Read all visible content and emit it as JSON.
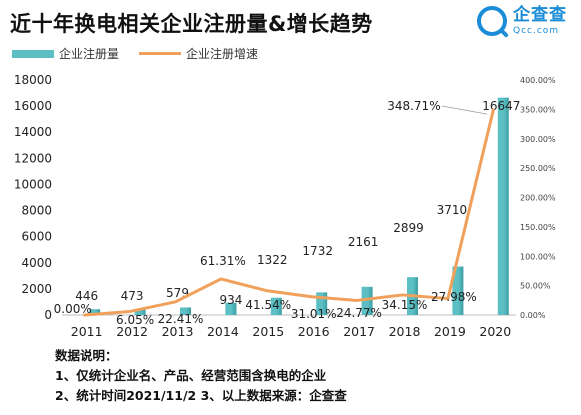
{
  "title": "近十年换电相关企业注册量&增长趋势",
  "logo": {
    "cn": "企查查",
    "en": "Qcc.com"
  },
  "legend": {
    "bar": "企业注册量",
    "line": "企业注册增速"
  },
  "colors": {
    "bar": "#5cbfc3",
    "bar_dark": "#3a9ea3",
    "line": "#f0a05a"
  },
  "notes": {
    "heading": "数据说明：",
    "line1": "1、仅统计企业名、产品、经营范围含换电的企业",
    "line2": "2、统计时间2021/11/2   3、以上数据来源：企查查"
  },
  "chart_data": {
    "type": "bar",
    "categories": [
      "2011",
      "2012",
      "2013",
      "2014",
      "2015",
      "2016",
      "2017",
      "2018",
      "2019",
      "2020"
    ],
    "series": [
      {
        "name": "企业注册量",
        "type": "bar",
        "axis": "left",
        "values": [
          446,
          473,
          579,
          934,
          1322,
          1732,
          2161,
          2899,
          3710,
          16647
        ],
        "labels": [
          "446",
          "473",
          "579",
          "934",
          "1322",
          "1732",
          "2161",
          "2899",
          "3710",
          "16647"
        ]
      },
      {
        "name": "企业注册增速",
        "type": "line",
        "axis": "right",
        "values": [
          0.0,
          6.05,
          22.41,
          61.31,
          41.54,
          31.01,
          24.77,
          34.15,
          27.98,
          348.71
        ],
        "labels": [
          "0.00%",
          "6.05%",
          "22.41%",
          "61.31%",
          "41.54%",
          "31.01%",
          "24.77%",
          "34.15%",
          "27.98%",
          "348.71%"
        ]
      }
    ],
    "y_left": {
      "min": 0,
      "max": 18000,
      "ticks": [
        "0",
        "2000",
        "4000",
        "6000",
        "8000",
        "10000",
        "12000",
        "14000",
        "16000",
        "18000"
      ]
    },
    "y_right": {
      "min": 0,
      "max": 400,
      "ticks": [
        "0.00%",
        "50.00%",
        "100.00%",
        "150.00%",
        "200.00%",
        "250.00%",
        "300.00%",
        "350.00%",
        "400.00%"
      ]
    },
    "legend_position": "top-left",
    "grid": false
  }
}
